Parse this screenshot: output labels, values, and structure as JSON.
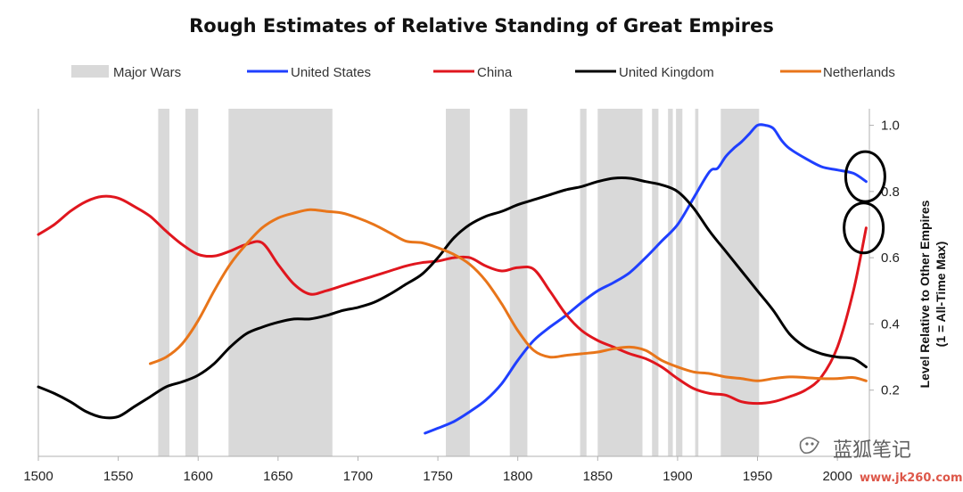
{
  "chart_data": {
    "type": "line",
    "title": "Rough Estimates of Relative Standing of Great Empires",
    "ylabel_line1": "Level Relative to Other Empires",
    "ylabel_line2": "(1 = All-Time Max)",
    "xlim": [
      1500,
      2020
    ],
    "ylim": [
      0,
      1.05
    ],
    "x_ticks": [
      1500,
      1550,
      1600,
      1650,
      1700,
      1750,
      1800,
      1850,
      1900,
      1950,
      2000
    ],
    "y_ticks": [
      "0.2",
      "0.4",
      "0.6",
      "0.8",
      "1.0"
    ],
    "y_tick_values": [
      0.2,
      0.4,
      0.6,
      0.8,
      1.0
    ],
    "legend_position": "top",
    "war_label": "Major Wars",
    "war_color": "#d9d9d9",
    "major_wars": [
      [
        1575,
        1582
      ],
      [
        1592,
        1600
      ],
      [
        1619,
        1684
      ],
      [
        1755,
        1770
      ],
      [
        1795,
        1806
      ],
      [
        1839,
        1843
      ],
      [
        1850,
        1878
      ],
      [
        1884,
        1888
      ],
      [
        1894,
        1897
      ],
      [
        1899,
        1903
      ],
      [
        1911,
        1913
      ],
      [
        1927,
        1951
      ]
    ],
    "series": [
      {
        "name": "United States",
        "color": "#1f3fff",
        "x": [
          1742,
          1750,
          1760,
          1770,
          1780,
          1790,
          1800,
          1810,
          1820,
          1830,
          1840,
          1850,
          1860,
          1870,
          1880,
          1890,
          1900,
          1910,
          1920,
          1925,
          1930,
          1935,
          1940,
          1945,
          1950,
          1955,
          1960,
          1965,
          1970,
          1980,
          1990,
          2000,
          2010,
          2018
        ],
        "y": [
          0.07,
          0.085,
          0.105,
          0.135,
          0.17,
          0.22,
          0.29,
          0.35,
          0.39,
          0.425,
          0.465,
          0.5,
          0.525,
          0.555,
          0.6,
          0.65,
          0.7,
          0.78,
          0.86,
          0.87,
          0.905,
          0.93,
          0.95,
          0.975,
          1.0,
          1.0,
          0.99,
          0.955,
          0.93,
          0.9,
          0.875,
          0.865,
          0.855,
          0.83
        ]
      },
      {
        "name": "China",
        "color": "#e0161e",
        "x": [
          1500,
          1510,
          1520,
          1530,
          1540,
          1550,
          1560,
          1570,
          1580,
          1590,
          1600,
          1610,
          1620,
          1630,
          1640,
          1650,
          1660,
          1670,
          1680,
          1690,
          1700,
          1710,
          1720,
          1730,
          1740,
          1750,
          1760,
          1770,
          1780,
          1790,
          1800,
          1810,
          1820,
          1830,
          1840,
          1850,
          1860,
          1870,
          1880,
          1890,
          1900,
          1910,
          1920,
          1930,
          1940,
          1950,
          1960,
          1970,
          1980,
          1990,
          2000,
          2010,
          2018
        ],
        "y": [
          0.67,
          0.7,
          0.74,
          0.77,
          0.785,
          0.78,
          0.755,
          0.725,
          0.68,
          0.64,
          0.61,
          0.605,
          0.62,
          0.64,
          0.645,
          0.58,
          0.52,
          0.49,
          0.5,
          0.515,
          0.53,
          0.545,
          0.56,
          0.575,
          0.585,
          0.59,
          0.6,
          0.6,
          0.575,
          0.56,
          0.57,
          0.565,
          0.5,
          0.43,
          0.38,
          0.35,
          0.33,
          0.31,
          0.295,
          0.27,
          0.235,
          0.205,
          0.19,
          0.185,
          0.165,
          0.16,
          0.165,
          0.18,
          0.2,
          0.24,
          0.33,
          0.5,
          0.69
        ]
      },
      {
        "name": "United Kingdom",
        "color": "#000000",
        "x": [
          1500,
          1510,
          1520,
          1530,
          1540,
          1550,
          1560,
          1570,
          1580,
          1590,
          1600,
          1610,
          1620,
          1630,
          1640,
          1650,
          1660,
          1670,
          1680,
          1690,
          1700,
          1710,
          1720,
          1730,
          1740,
          1750,
          1760,
          1770,
          1780,
          1790,
          1800,
          1810,
          1820,
          1830,
          1840,
          1850,
          1860,
          1870,
          1880,
          1890,
          1900,
          1910,
          1920,
          1930,
          1940,
          1950,
          1960,
          1970,
          1980,
          1990,
          2000,
          2010,
          2018
        ],
        "y": [
          0.21,
          0.19,
          0.165,
          0.135,
          0.118,
          0.12,
          0.15,
          0.18,
          0.21,
          0.225,
          0.245,
          0.28,
          0.33,
          0.37,
          0.39,
          0.405,
          0.415,
          0.415,
          0.425,
          0.44,
          0.45,
          0.465,
          0.49,
          0.52,
          0.55,
          0.6,
          0.66,
          0.7,
          0.725,
          0.74,
          0.76,
          0.775,
          0.79,
          0.805,
          0.815,
          0.83,
          0.84,
          0.84,
          0.83,
          0.82,
          0.8,
          0.75,
          0.68,
          0.62,
          0.56,
          0.5,
          0.44,
          0.37,
          0.33,
          0.31,
          0.3,
          0.295,
          0.27
        ]
      },
      {
        "name": "Netherlands",
        "color": "#e8751a",
        "x": [
          1570,
          1580,
          1590,
          1600,
          1610,
          1620,
          1630,
          1640,
          1650,
          1660,
          1670,
          1680,
          1690,
          1700,
          1710,
          1720,
          1730,
          1740,
          1750,
          1760,
          1770,
          1780,
          1790,
          1800,
          1810,
          1820,
          1830,
          1840,
          1850,
          1860,
          1870,
          1880,
          1890,
          1900,
          1910,
          1920,
          1930,
          1940,
          1950,
          1960,
          1970,
          1980,
          1990,
          2000,
          2010,
          2018
        ],
        "y": [
          0.28,
          0.3,
          0.34,
          0.41,
          0.5,
          0.58,
          0.64,
          0.69,
          0.72,
          0.735,
          0.745,
          0.74,
          0.735,
          0.72,
          0.7,
          0.675,
          0.65,
          0.645,
          0.63,
          0.61,
          0.58,
          0.53,
          0.46,
          0.38,
          0.32,
          0.3,
          0.305,
          0.31,
          0.315,
          0.325,
          0.33,
          0.32,
          0.29,
          0.27,
          0.255,
          0.25,
          0.24,
          0.235,
          0.228,
          0.235,
          0.24,
          0.238,
          0.235,
          0.235,
          0.238,
          0.228
        ]
      }
    ],
    "annotation_circles": [
      {
        "x": 2018,
        "y": 0.845
      },
      {
        "x": 2017,
        "y": 0.69
      }
    ],
    "annotation_color": "#000000"
  },
  "watermark": {
    "brand": "蓝狐笔记",
    "site": "www.jk260.com"
  }
}
